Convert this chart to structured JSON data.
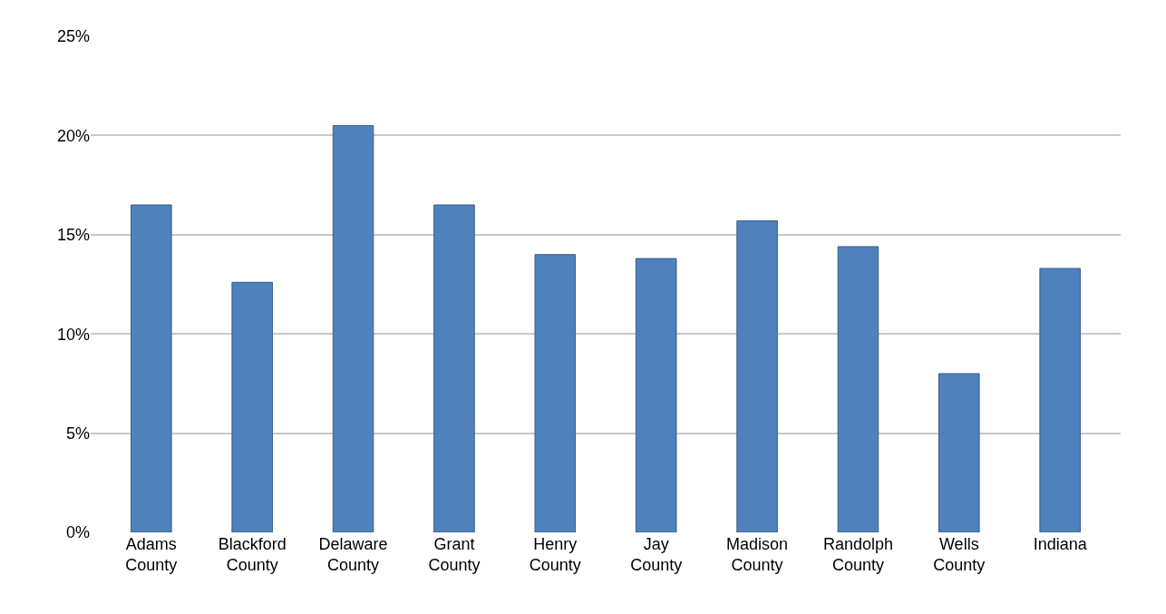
{
  "chart_data": {
    "type": "bar",
    "categories": [
      "Adams County",
      "Blackford County",
      "Delaware County",
      "Grant County",
      "Henry County",
      "Jay County",
      "Madison County",
      "Randolph County",
      "Wells County",
      "Indiana"
    ],
    "values": [
      16.5,
      12.6,
      20.5,
      16.5,
      14.0,
      13.8,
      15.7,
      14.4,
      8.0,
      13.3
    ],
    "color": "#4f81bd",
    "ylim": [
      0,
      25
    ],
    "yticks": [
      {
        "value": 0,
        "label": "0%"
      },
      {
        "value": 5,
        "label": "5%"
      },
      {
        "value": 10,
        "label": "10%"
      },
      {
        "value": 15,
        "label": "15%"
      },
      {
        "value": 20,
        "label": "20%"
      },
      {
        "value": 25,
        "label": "25%"
      }
    ],
    "grid": "y"
  }
}
